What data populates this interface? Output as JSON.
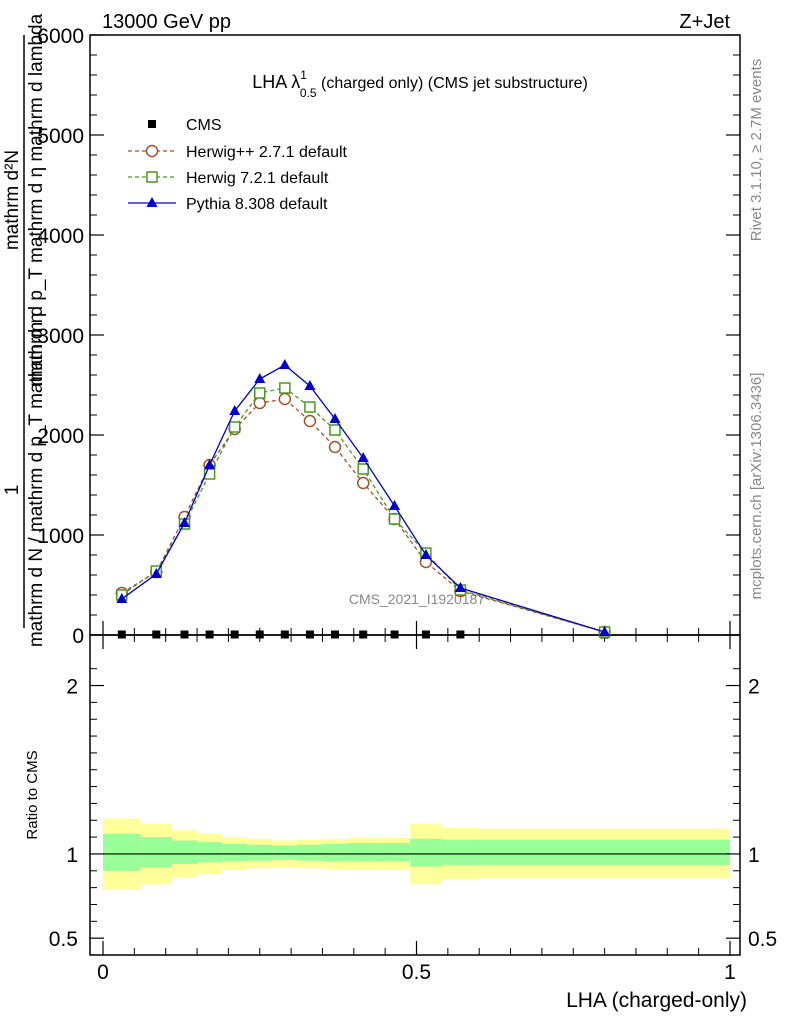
{
  "header": {
    "left": "13000 GeV pp",
    "right": "Z+Jet"
  },
  "side": {
    "rivet": "Rivet 3.1.10, ≥ 2.7M events",
    "mcplots": "mcplots.cern.ch [arXiv:1306.3436]"
  },
  "chart_data": {
    "type": "line",
    "title": "LHA λ¹₀.₅ (charged only) (CMS jet substructure)",
    "title_parts": {
      "main": "LHA λ",
      "sup": "1",
      "sub": "0.5",
      "rest": " (charged only) (CMS jet substructure)"
    },
    "watermark": "CMS_2021_I1920187",
    "xlabel": "LHA (charged-only)",
    "ylabel": {
      "numerator": "1",
      "denominator": "mathrm d N / mathrm d p_T mathrm d η",
      "right_num": "mathrm d²N",
      "right_den": "mathrm d p_T mathrm d η  mathrm d lambda"
    },
    "xlim": [
      0,
      1
    ],
    "ylim_main": [
      0,
      6000
    ],
    "yticks_main": [
      0,
      1000,
      2000,
      3000,
      4000,
      5000,
      6000
    ],
    "yticklabels_main": [
      "0",
      "1000",
      "2000",
      "3000",
      "4000",
      "5000",
      "6000"
    ],
    "x": [
      0.03,
      0.085,
      0.13,
      0.17,
      0.21,
      0.25,
      0.29,
      0.33,
      0.37,
      0.415,
      0.465,
      0.515,
      0.57,
      0.8
    ],
    "series": [
      {
        "name": "CMS",
        "color": "#000000",
        "marker": "square-filled",
        "dashed": false,
        "line": false,
        "values": [
          5,
          5,
          5,
          5,
          5,
          5,
          5,
          5,
          5,
          5,
          5,
          5,
          5,
          5
        ]
      },
      {
        "name": "Herwig++ 2.7.1 default",
        "color": "#a0522d",
        "marker": "circle-open",
        "dashed": true,
        "line": true,
        "values": [
          420,
          630,
          1180,
          1700,
          2060,
          2320,
          2360,
          2140,
          1880,
          1520,
          1160,
          730,
          440,
          30
        ]
      },
      {
        "name": "Herwig 7.2.1 default",
        "color": "#4a9a1e",
        "marker": "square-open",
        "dashed": true,
        "line": true,
        "values": [
          400,
          640,
          1110,
          1610,
          2080,
          2420,
          2470,
          2280,
          2050,
          1660,
          1160,
          820,
          450,
          30
        ]
      },
      {
        "name": "Pythia 8.308 default",
        "color": "#0000cc",
        "marker": "triangle-filled",
        "dashed": false,
        "line": true,
        "values": [
          360,
          610,
          1120,
          1700,
          2240,
          2560,
          2700,
          2490,
          2160,
          1770,
          1290,
          800,
          470,
          30
        ]
      }
    ],
    "ratio": {
      "ylabel": "Ratio to CMS",
      "ylim": [
        0.4,
        2.3
      ],
      "yticks": [
        0.5,
        1,
        2
      ],
      "yticklabels": [
        "0.5",
        "1",
        "2"
      ],
      "xticks": [
        0,
        0.5,
        1
      ],
      "xticklabels": [
        "0",
        "0.5",
        "1"
      ],
      "bins": [
        0,
        0.06,
        0.11,
        0.15,
        0.19,
        0.23,
        0.27,
        0.31,
        0.35,
        0.39,
        0.44,
        0.49,
        0.54,
        0.6,
        1.0
      ],
      "band_inner_lo": [
        0.9,
        0.92,
        0.94,
        0.95,
        0.955,
        0.96,
        0.965,
        0.96,
        0.955,
        0.955,
        0.955,
        0.925,
        0.935,
        0.935
      ],
      "band_inner_hi": [
        1.12,
        1.1,
        1.08,
        1.07,
        1.06,
        1.055,
        1.05,
        1.055,
        1.06,
        1.065,
        1.065,
        1.09,
        1.085,
        1.085
      ],
      "band_outer_lo": [
        0.79,
        0.82,
        0.86,
        0.88,
        0.905,
        0.915,
        0.92,
        0.915,
        0.91,
        0.905,
        0.905,
        0.82,
        0.85,
        0.855
      ],
      "band_outer_hi": [
        1.21,
        1.18,
        1.14,
        1.12,
        1.1,
        1.09,
        1.08,
        1.085,
        1.09,
        1.095,
        1.095,
        1.18,
        1.155,
        1.15
      ]
    }
  }
}
